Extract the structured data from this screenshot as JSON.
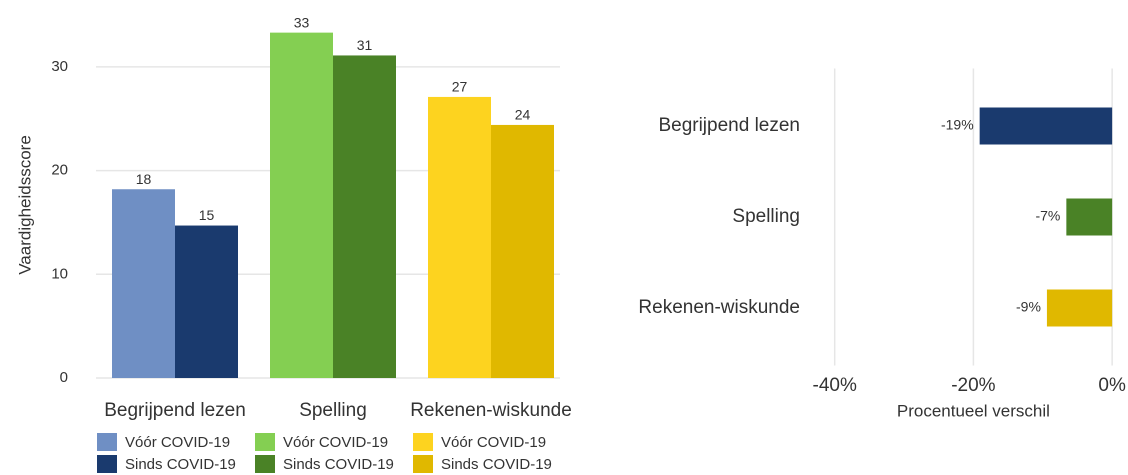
{
  "chart_data": [
    {
      "type": "bar",
      "ylabel": "Vaardigheidsscore",
      "categories": [
        "Begrijpend lezen",
        "Spelling",
        "Rekenen-wiskunde"
      ],
      "series": [
        {
          "name": "Vóór COVID-19",
          "colors": [
            "#6f8fc4",
            "#84cf52",
            "#fdd31f"
          ],
          "values": [
            18.2,
            33.3,
            27.1
          ],
          "value_labels": [
            "18",
            "33",
            "27"
          ]
        },
        {
          "name": "Sinds COVID-19",
          "colors": [
            "#1a3a6e",
            "#4a8226",
            "#e0b800"
          ],
          "values": [
            14.7,
            31.1,
            24.4
          ],
          "value_labels": [
            "15",
            "31",
            "24"
          ]
        }
      ],
      "ylim": [
        0,
        35
      ],
      "yticks": [
        0,
        10,
        20,
        30
      ],
      "grid": true
    },
    {
      "type": "hbar",
      "xlabel": "Procentueel verschil",
      "categories": [
        "Begrijpend lezen",
        "Spelling",
        "Rekenen-wiskunde"
      ],
      "colors": [
        "#1a3a6e",
        "#4a8226",
        "#e0b800"
      ],
      "values": [
        -19.1,
        -6.6,
        -9.4
      ],
      "value_labels": [
        "-19%",
        "-7%",
        "-9%"
      ],
      "xlim": [
        -45,
        2
      ],
      "xticks": [
        {
          "value": -40,
          "label": "-40%"
        },
        {
          "value": -20,
          "label": "-20%"
        },
        {
          "value": 0,
          "label": "0%"
        }
      ],
      "grid": true
    }
  ]
}
